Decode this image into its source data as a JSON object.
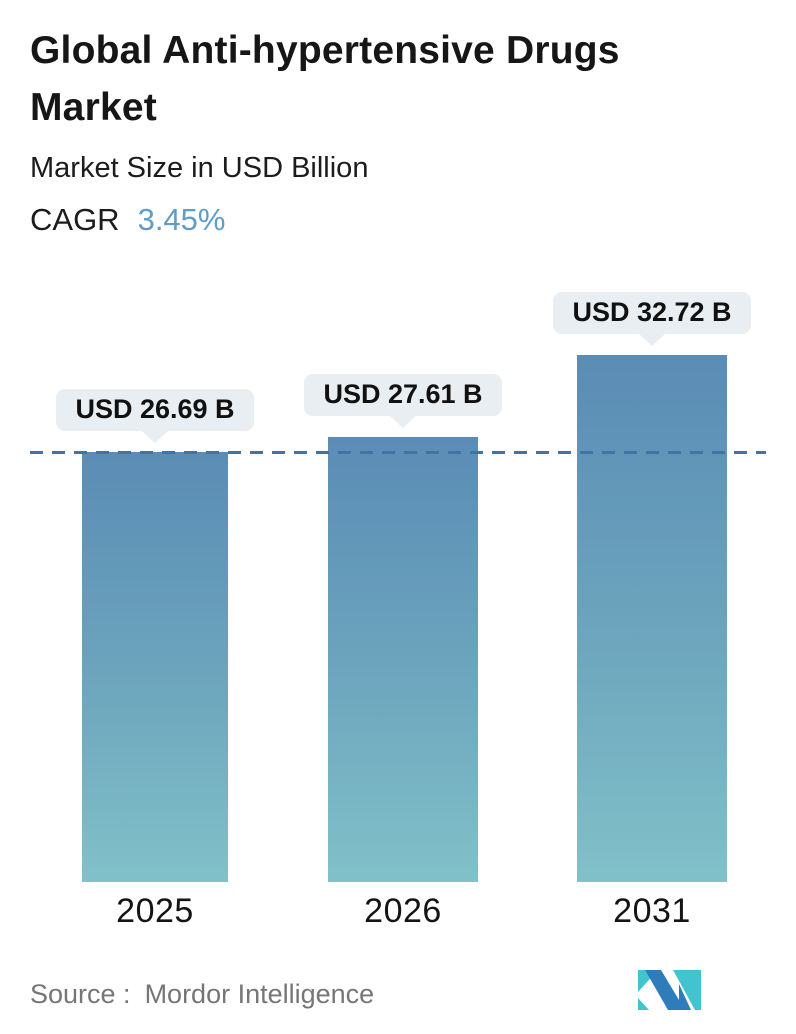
{
  "header": {
    "title": "Global Anti-hypertensive Drugs Market",
    "subtitle": "Market Size in USD Billion",
    "cagr_label": "CAGR",
    "cagr_value": "3.45%"
  },
  "chart_data": {
    "type": "bar",
    "title": "Global Anti-hypertensive Drugs Market",
    "ylabel": "Market Size in USD Billion",
    "cagr_percent": 3.45,
    "categories": [
      "2025",
      "2026",
      "2031"
    ],
    "values": [
      26.69,
      27.61,
      32.72
    ],
    "value_labels": [
      "USD 26.69 B",
      "USD 27.61 B",
      "USD 32.72 B"
    ],
    "ylim": [
      0,
      32.72
    ],
    "grid": false,
    "legend": false,
    "reference_line": {
      "value": 26.69,
      "style": "dashed",
      "note": "horizontal dashed line at 2025 value level"
    }
  },
  "footer": {
    "source_label": "Source :",
    "source_value": "Mordor Intelligence",
    "logo": "mordor-intelligence-logo"
  },
  "colors": {
    "bar_gradient_top": "#5b8cb5",
    "bar_gradient_bottom": "#81c1c9",
    "reference_line": "#3f74a6",
    "bubble_bg": "#e8eef1",
    "cagr_value": "#5f9dc9",
    "title_text": "#161616",
    "year_text": "#141414",
    "source_text": "#767676",
    "logo_teal": "#41c4cf",
    "logo_blue": "#2f7cba",
    "background": "#ffffff"
  }
}
